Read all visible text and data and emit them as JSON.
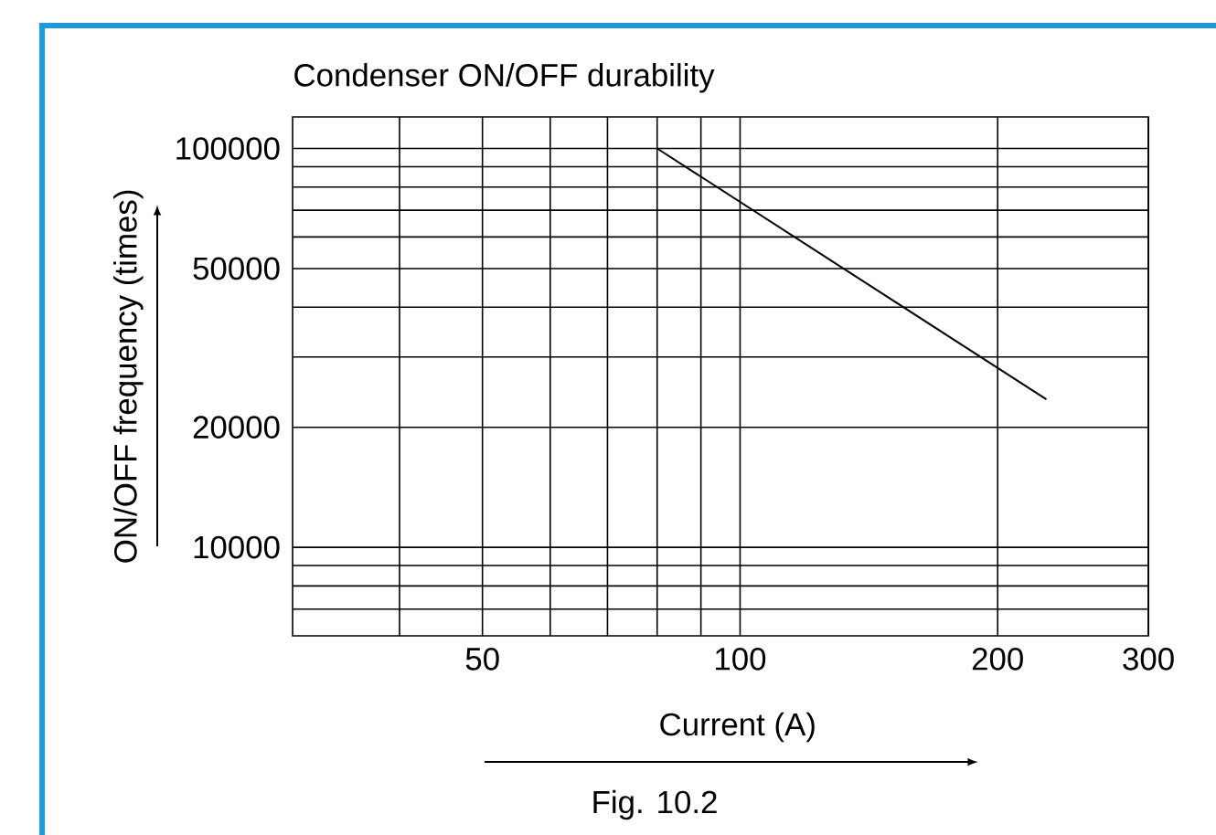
{
  "chart_data": {
    "type": "line",
    "title": "Condenser ON/OFF durability",
    "xlabel": "Current (A)",
    "ylabel": "ON/OFF frequency (times)",
    "annotations": [
      "Fig. 10.2"
    ],
    "series": [
      {
        "color": "#000000",
        "x": [
          80,
          228
        ],
        "values": [
          100000,
          23500
        ]
      }
    ],
    "xlim": [
      30,
      300
    ],
    "ylim": [
      6000,
      120000
    ],
    "log": "xy",
    "grid": true,
    "line_style": "solid",
    "xticks": [
      {
        "value": 40,
        "label": null
      },
      50,
      {
        "value": 60,
        "label": null
      },
      {
        "value": 70,
        "label": null
      },
      {
        "value": 80,
        "label": null
      },
      {
        "value": 90,
        "label": null
      },
      100,
      200,
      300
    ],
    "yticks": [
      {
        "value": 7000,
        "label": null
      },
      {
        "value": 8000,
        "label": null
      },
      {
        "value": 9000,
        "label": null
      },
      10000,
      20000,
      {
        "value": 30000,
        "label": null
      },
      {
        "value": 40000,
        "label": null
      },
      50000,
      {
        "value": 60000,
        "label": null
      },
      {
        "value": 70000,
        "label": null
      },
      {
        "value": 80000,
        "label": null
      },
      {
        "value": 90000,
        "label": null
      },
      100000
    ]
  }
}
